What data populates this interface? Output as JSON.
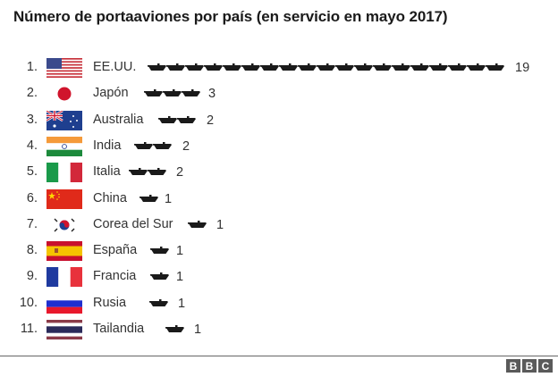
{
  "chart_data": {
    "type": "bar",
    "title": "Número de portaaviones por país (en servicio en mayo 2017)",
    "xlabel": "",
    "ylabel": "",
    "categories": [
      "EE.UU.",
      "Japón",
      "Australia",
      "India",
      "Italia",
      "China",
      "Corea del Sur",
      "España",
      "Francia",
      "Rusia",
      "Tailandia"
    ],
    "values": [
      19,
      3,
      2,
      2,
      2,
      1,
      1,
      1,
      1,
      1,
      1
    ],
    "orientation": "horizontal pictogram",
    "icon": "aircraft-carrier",
    "legend": null,
    "grid": false
  },
  "title": "Número de portaaviones por país (en servicio en mayo 2017)",
  "rows": [
    {
      "rank": "1.",
      "country": "EE.UU.",
      "count": "19",
      "flag": "usa",
      "shipsLeft": 165,
      "countLeft": 576
    },
    {
      "rank": "2.",
      "country": "Japón",
      "count": "3",
      "flag": "japan",
      "shipsLeft": 161,
      "countLeft": 233
    },
    {
      "rank": "3.",
      "country": "Australia",
      "count": "2",
      "flag": "australia",
      "shipsLeft": 177,
      "countLeft": 231
    },
    {
      "rank": "4.",
      "country": "India",
      "count": "2",
      "flag": "india",
      "shipsLeft": 150,
      "countLeft": 204
    },
    {
      "rank": "5.",
      "country": "Italia",
      "count": "2",
      "flag": "italy",
      "shipsLeft": 144,
      "countLeft": 197
    },
    {
      "rank": "6.",
      "country": "China",
      "count": "1",
      "flag": "china",
      "shipsLeft": 156,
      "countLeft": 184
    },
    {
      "rank": "7.",
      "country": "Corea del Sur",
      "count": "1",
      "flag": "south-korea",
      "shipsLeft": 210,
      "countLeft": 242
    },
    {
      "rank": "8.",
      "country": "España",
      "count": "1",
      "flag": "spain",
      "shipsLeft": 168,
      "countLeft": 197
    },
    {
      "rank": "9.",
      "country": "Francia",
      "count": "1",
      "flag": "france",
      "shipsLeft": 168,
      "countLeft": 197
    },
    {
      "rank": "10.",
      "country": "Rusia",
      "count": "1",
      "flag": "russia",
      "shipsLeft": 167,
      "countLeft": 199
    },
    {
      "rank": "11.",
      "country": "Tailandia",
      "count": "1",
      "flag": "thailand",
      "shipsLeft": 185,
      "countLeft": 217
    }
  ],
  "footer": {
    "logo": [
      "B",
      "B",
      "C"
    ]
  },
  "colors": {
    "ship": "#1a1a1a",
    "separator": "#666666",
    "logo_bg": "#5a5a5a"
  }
}
